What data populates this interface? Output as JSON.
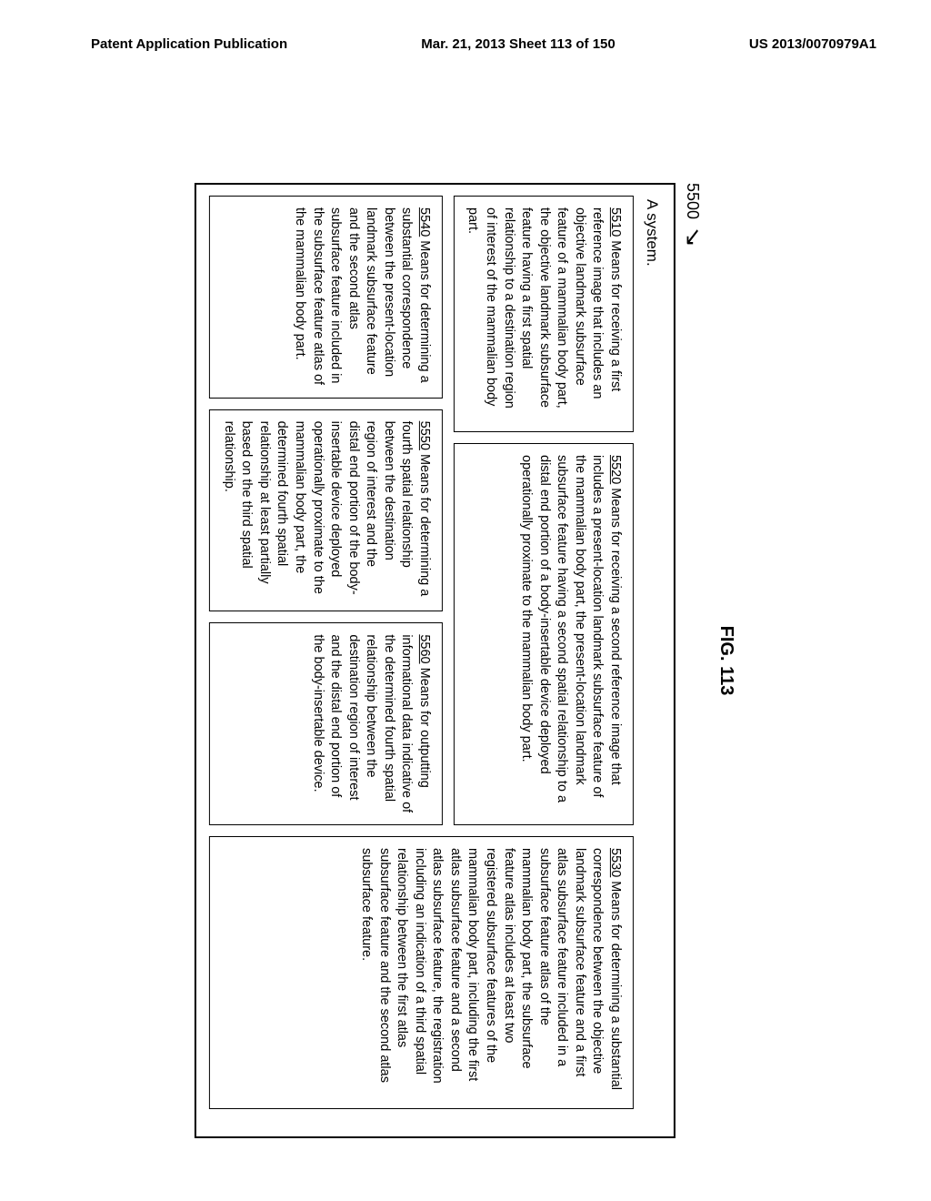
{
  "header": {
    "left": "Patent Application Publication",
    "center": "Mar. 21, 2013  Sheet 113 of 150",
    "right": "US 2013/0070979A1"
  },
  "figNumber": "5500",
  "figTitle": "FIG. 113",
  "systemLabel": "A system.",
  "boxes": {
    "b5510": {
      "ref": "5510",
      "text": "  Means for receiving a first reference image that includes an objective landmark subsurface feature of a mammalian body part, the objective landmark subsurface feature having a first spatial relationship to a destination region of interest of the mammalian body part."
    },
    "b5520": {
      "ref": "5520",
      "text": "  Means for receiving a second reference image that includes a present-location landmark subsurface feature of the mammalian body part, the present-location landmark subsurface feature having a second spatial relationship to a distal end portion of a body-insertable device deployed operationally proximate to the mammalian body part."
    },
    "b5530": {
      "ref": "5530",
      "text": "  Means for determining a substantial correspondence between the objective landmark subsurface feature and a first atlas subsurface feature included in a subsurface feature atlas of the mammalian body part, the subsurface feature atlas includes at least two registered subsurface features of the mammalian body part, including the first atlas subsurface feature and a second atlas subsurface feature, the registration including an indication of a third spatial relationship between the first atlas subsurface feature and the second atlas subsurface feature."
    },
    "b5540": {
      "ref": "5540",
      "text": "  Means for determining a substantial correspondence between the present-location landmark subsurface feature and the second atlas subsurface feature included in the subsurface feature atlas of the mammalian body part."
    },
    "b5550": {
      "ref": "5550",
      "text": "  Means for determining a fourth spatial relationship between the destination region of interest and the distal end portion of the body-insertable device deployed operationally proximate to the mammalian body part, the determined fourth spatial relationship at least partially based on the third spatial relationship."
    },
    "b5560": {
      "ref": "5560",
      "text": "  Means for outputting informational data indicative of the determined fourth spatial relationship between the destination region of interest and the distal end portion of the body-insertable device."
    }
  }
}
